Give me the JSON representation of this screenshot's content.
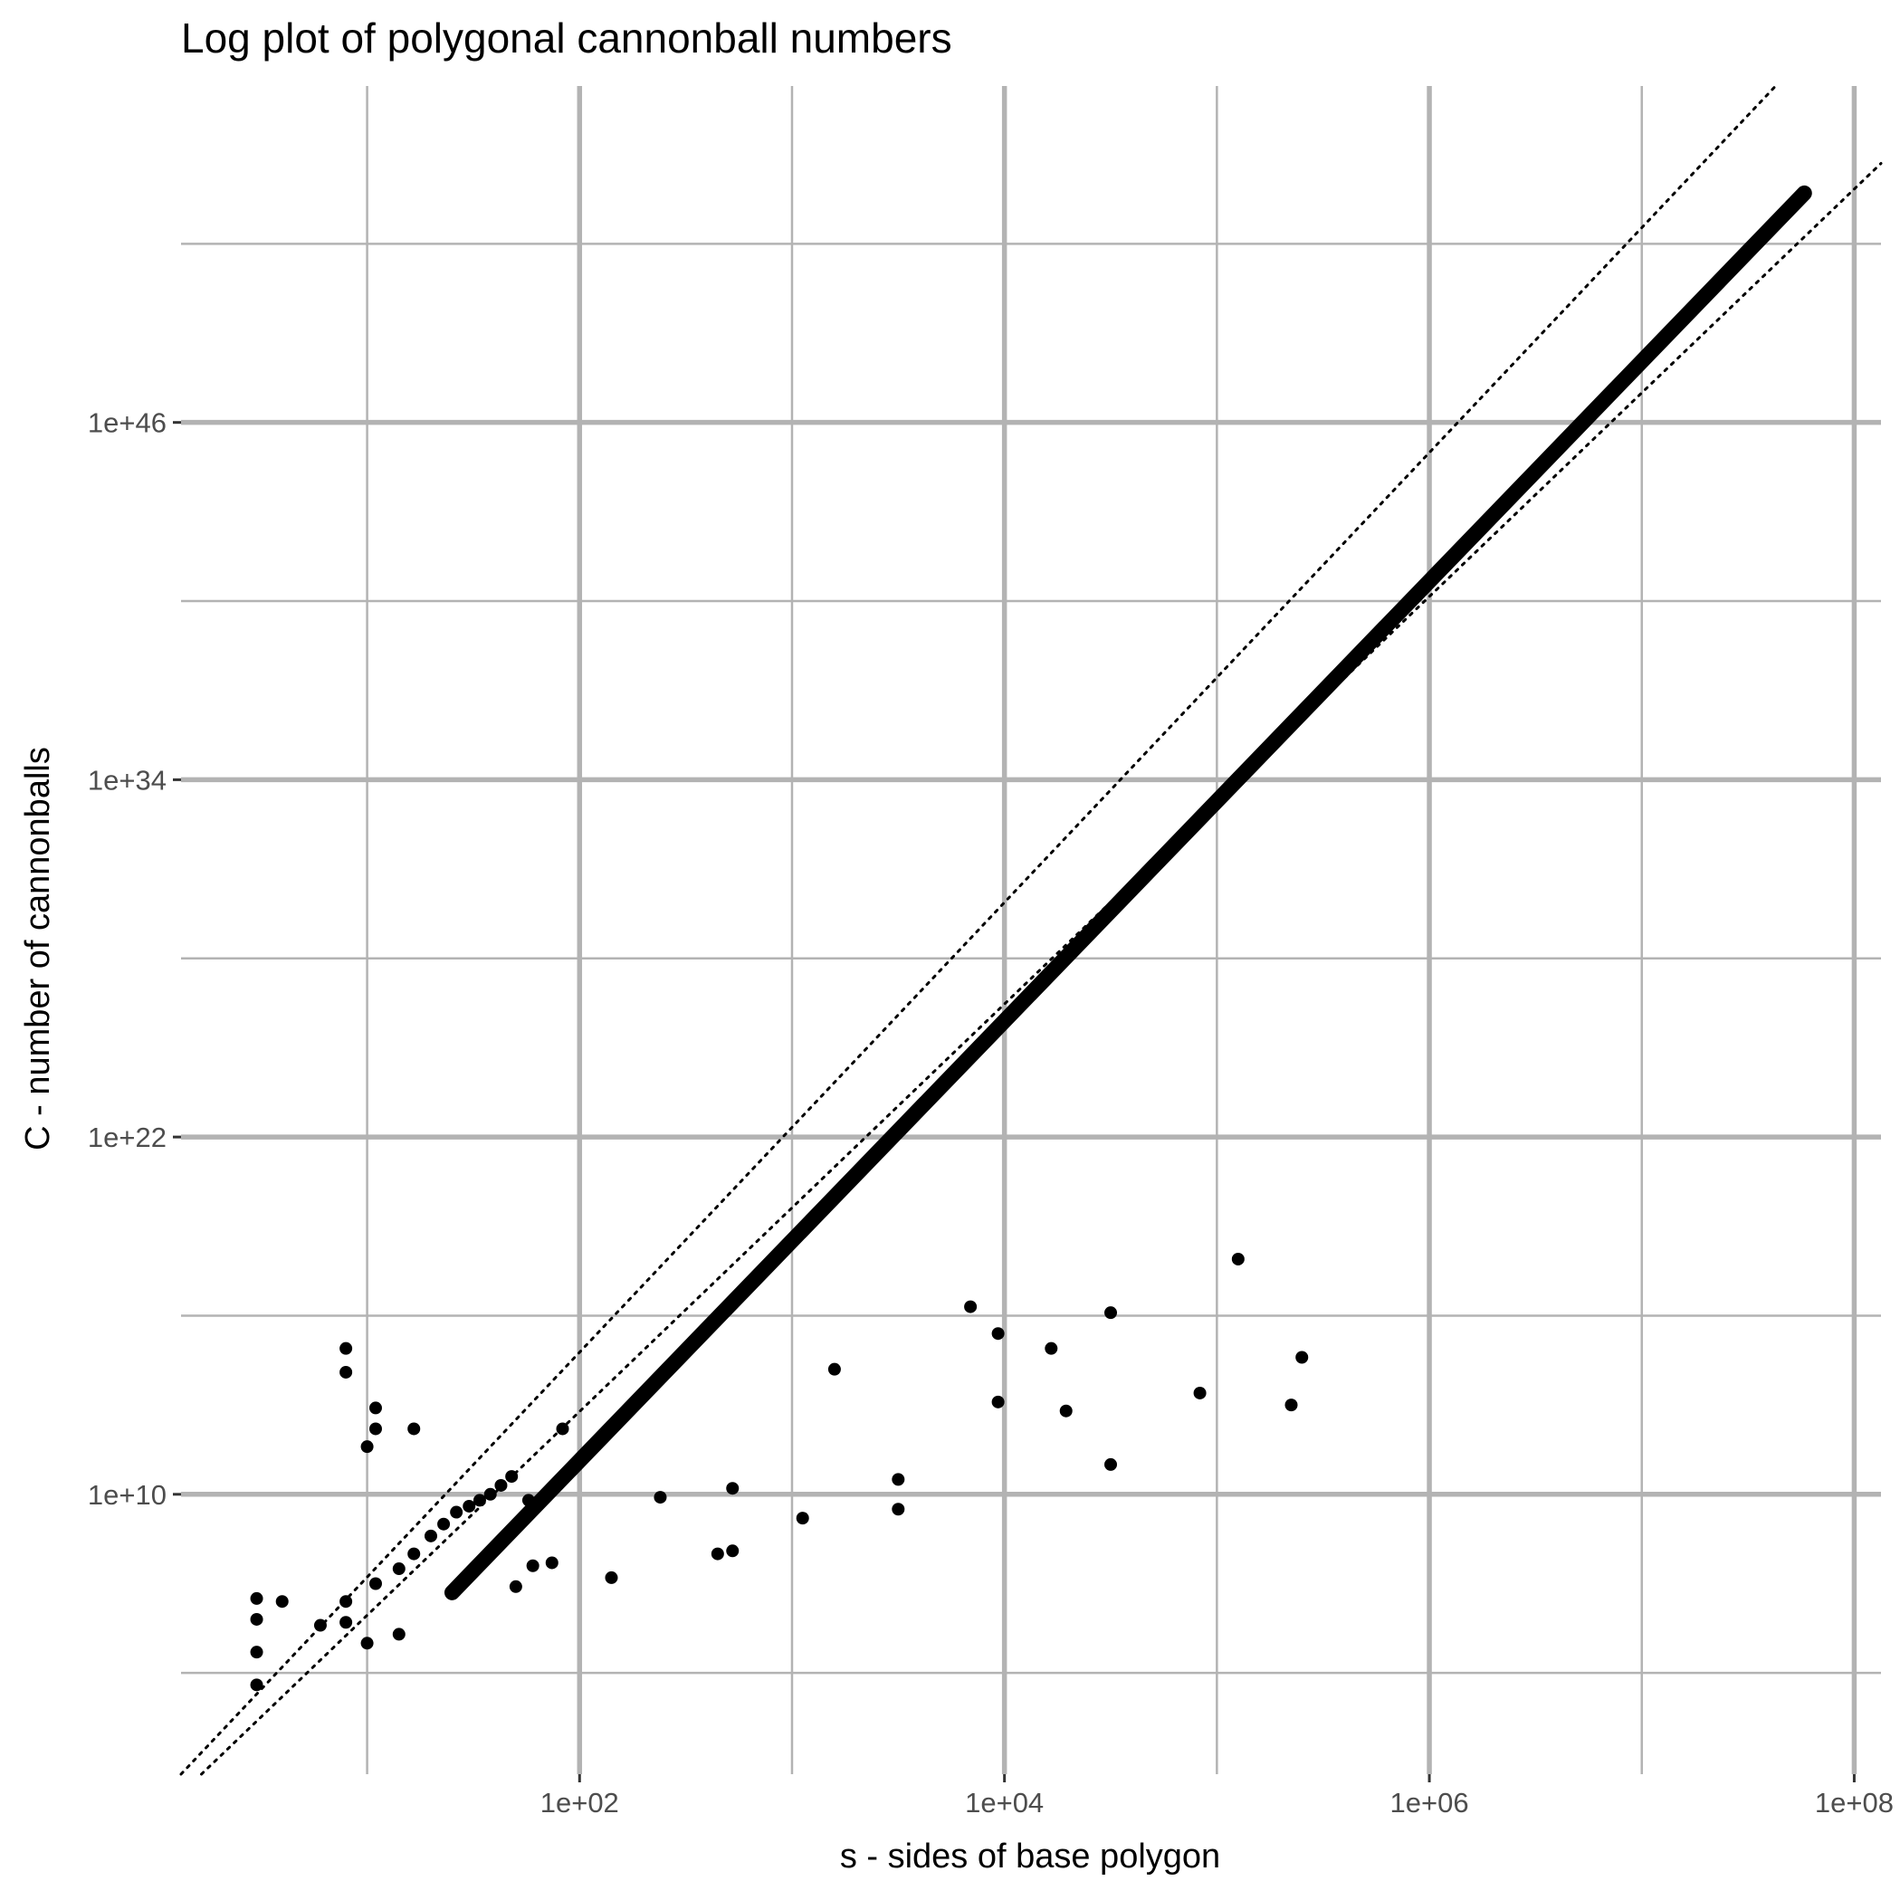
{
  "chart_data": {
    "type": "scatter",
    "title": "Log plot of polygonal cannonball numbers",
    "xlabel": "s - sides of base polygon",
    "ylabel": "C - number of cannonballs",
    "x_scale": "log10",
    "y_scale": "log10",
    "x_ticks": [
      {
        "value": 100,
        "label": "1e+02"
      },
      {
        "value": 10000,
        "label": "1e+04"
      },
      {
        "value": 1000000,
        "label": "1e+06"
      },
      {
        "value": 100000000,
        "label": "1e+08"
      }
    ],
    "y_ticks": [
      {
        "value": 10000000000.0,
        "label": "1e+10"
      },
      {
        "value": 1e+22,
        "label": "1e+22"
      },
      {
        "value": 1e+34,
        "label": "1e+34"
      },
      {
        "value": 1e+46,
        "label": "1e+46"
      }
    ],
    "xlim_log10": [
      0.124,
      8.126
    ],
    "ylim_log10": [
      0.6,
      57.3
    ],
    "grid": true,
    "legend": "none",
    "colors": {
      "background": "#ffffff",
      "grid": "#b3b3b3",
      "points": "#000000",
      "reference_lines": "#000000",
      "tick_label": "#4d4d4d"
    },
    "main_curve": {
      "description_points_log10": [
        [
          1.4,
          6.7
        ],
        [
          7.765,
          53.7
        ]
      ],
      "style": "dense points forming thick line"
    },
    "reference_lines": [
      {
        "style": "dotted",
        "log10_points": [
          [
            0.124,
            0.6
          ],
          [
            7.63,
            57.3
          ]
        ]
      },
      {
        "style": "dotted",
        "log10_points": [
          [
            0.22,
            0.6
          ],
          [
            8.126,
            54.7
          ]
        ]
      }
    ],
    "scatter_points_log10": [
      [
        0.48,
        3.6
      ],
      [
        0.48,
        4.7
      ],
      [
        0.48,
        5.8
      ],
      [
        0.48,
        6.5
      ],
      [
        0.6,
        6.4
      ],
      [
        0.78,
        5.6
      ],
      [
        0.9,
        6.4
      ],
      [
        0.9,
        5.7
      ],
      [
        0.9,
        14.1
      ],
      [
        0.9,
        14.9
      ],
      [
        1.0,
        5.0
      ],
      [
        1.0,
        11.6
      ],
      [
        1.04,
        12.2
      ],
      [
        1.04,
        12.9
      ],
      [
        1.04,
        7.0
      ],
      [
        1.15,
        5.3
      ],
      [
        1.15,
        7.5
      ],
      [
        1.22,
        8.0
      ],
      [
        1.22,
        12.2
      ],
      [
        1.3,
        8.6
      ],
      [
        1.36,
        9.0
      ],
      [
        1.42,
        9.4
      ],
      [
        1.48,
        9.6
      ],
      [
        1.53,
        9.8
      ],
      [
        1.58,
        10.0
      ],
      [
        1.63,
        10.3
      ],
      [
        1.68,
        10.6
      ],
      [
        1.7,
        6.9
      ],
      [
        1.76,
        9.8
      ],
      [
        1.78,
        7.6
      ],
      [
        1.87,
        7.7
      ],
      [
        1.92,
        12.2
      ],
      [
        2.15,
        7.2
      ],
      [
        2.38,
        9.9
      ],
      [
        2.65,
        8.0
      ],
      [
        2.72,
        8.1
      ],
      [
        2.72,
        10.2
      ],
      [
        3.05,
        9.2
      ],
      [
        3.2,
        14.2
      ],
      [
        3.5,
        9.5
      ],
      [
        3.5,
        10.5
      ],
      [
        3.84,
        16.3
      ],
      [
        3.97,
        15.4
      ],
      [
        3.97,
        13.1
      ],
      [
        4.22,
        14.9
      ],
      [
        4.29,
        12.8
      ],
      [
        4.5,
        16.1
      ],
      [
        4.5,
        11.0
      ],
      [
        4.92,
        13.4
      ],
      [
        5.1,
        17.9
      ],
      [
        5.35,
        13.0
      ],
      [
        5.4,
        14.6
      ]
    ]
  }
}
